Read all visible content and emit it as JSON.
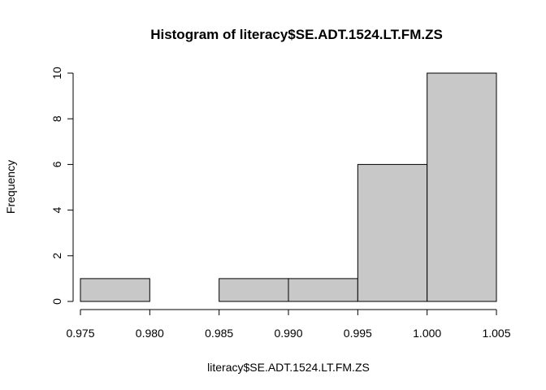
{
  "chart_data": {
    "type": "bar",
    "title": "Histogram of literacy$SE.ADT.1524.LT.FM.ZS",
    "xlabel": "literacy$SE.ADT.1524.LT.FM.ZS",
    "ylabel": "Frequency",
    "bins": [
      {
        "x0": 0.975,
        "x1": 0.98,
        "count": 1
      },
      {
        "x0": 0.98,
        "x1": 0.985,
        "count": 0
      },
      {
        "x0": 0.985,
        "x1": 0.99,
        "count": 1
      },
      {
        "x0": 0.99,
        "x1": 0.995,
        "count": 1
      },
      {
        "x0": 0.995,
        "x1": 1.0,
        "count": 6
      },
      {
        "x0": 1.0,
        "x1": 1.005,
        "count": 10
      }
    ],
    "xlim": [
      0.975,
      1.005
    ],
    "ylim": [
      0,
      10
    ],
    "x_ticks": [
      "0.975",
      "0.980",
      "0.985",
      "0.990",
      "0.995",
      "1.000",
      "1.005"
    ],
    "y_ticks": [
      "0",
      "2",
      "4",
      "6",
      "8",
      "10"
    ],
    "colors": {
      "bar_fill": "#c8c8c8",
      "bar_stroke": "#000000"
    },
    "grid": false,
    "legend": "none"
  }
}
